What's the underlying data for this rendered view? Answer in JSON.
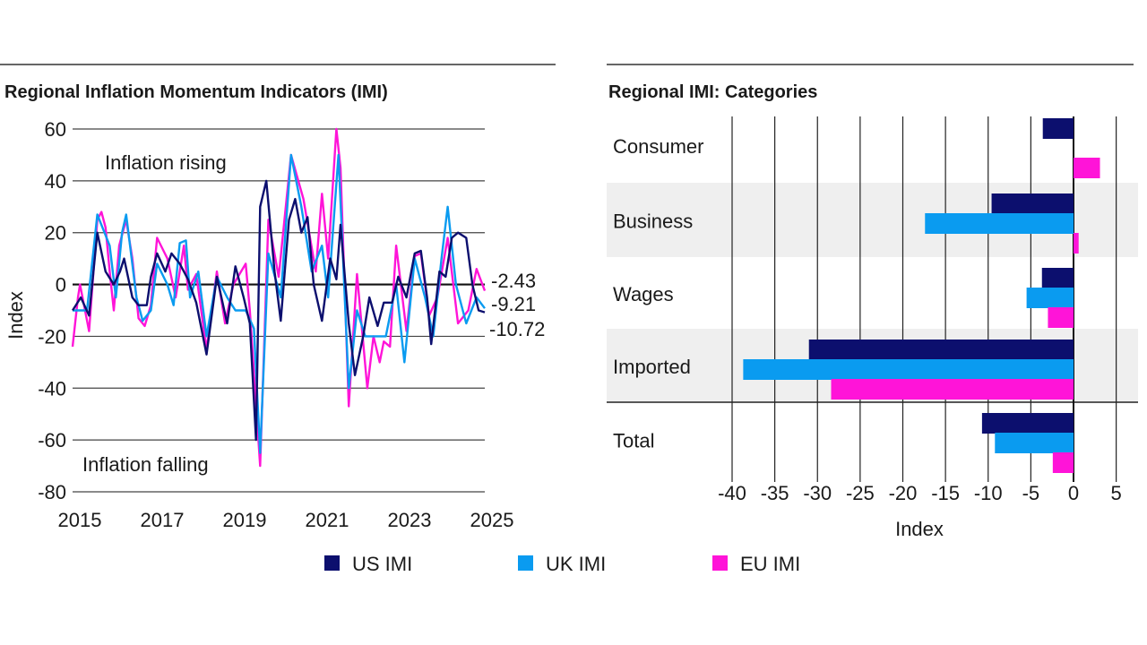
{
  "colors": {
    "US": "#0c0f6e",
    "UK": "#0a9bf0",
    "EU": "#ff14d8"
  },
  "legend": [
    {
      "key": "US",
      "label": "US IMI"
    },
    {
      "key": "UK",
      "label": "UK IMI"
    },
    {
      "key": "EU",
      "label": "EU IMI"
    }
  ],
  "chart_data": [
    {
      "type": "line",
      "title": "Regional Inflation Momentum Indicators (IMI)",
      "ylabel": "Index",
      "xlabel": "",
      "ylim": [
        -80,
        60
      ],
      "xlim": [
        2015,
        2025
      ],
      "yticks": [
        "60",
        "40",
        "20",
        "0",
        "-20",
        "-40",
        "-60",
        "-80"
      ],
      "xticks": [
        "2015",
        "2017",
        "2019",
        "2021",
        "2023",
        "2025"
      ],
      "grid": "horizontal",
      "annotations": {
        "rising": "Inflation rising",
        "falling": "Inflation falling"
      },
      "end_labels": {
        "EU": "-2.43",
        "UK": "-9.21",
        "US": "-10.72"
      },
      "series": [
        {
          "name": "US IMI",
          "key": "US",
          "x": [
            2015,
            2015.2,
            2015.4,
            2015.6,
            2015.8,
            2016.0,
            2016.15,
            2016.25,
            2016.45,
            2016.6,
            2016.8,
            2016.9,
            2017.05,
            2017.25,
            2017.4,
            2017.6,
            2017.8,
            2018.0,
            2018.25,
            2018.5,
            2018.75,
            2018.95,
            2019.15,
            2019.3,
            2019.45,
            2019.55,
            2019.7,
            2019.9,
            2020.05,
            2020.25,
            2020.4,
            2020.55,
            2020.7,
            2020.85,
            2021.05,
            2021.25,
            2021.4,
            2021.5,
            2021.7,
            2021.85,
            2022.05,
            2022.2,
            2022.4,
            2022.55,
            2022.75,
            2022.9,
            2023.1,
            2023.3,
            2023.45,
            2023.6,
            2023.7,
            2023.9,
            2024.05,
            2024.2,
            2024.35,
            2024.55,
            2024.7,
            2024.85,
            2025
          ],
          "y": [
            -10,
            -5,
            -12,
            20,
            5,
            0,
            5,
            10,
            -5,
            -8,
            -8,
            3,
            12,
            5,
            12,
            8,
            2,
            -7,
            -27,
            3,
            -15,
            7,
            -5,
            -15,
            -60,
            30,
            40,
            5,
            -14,
            25,
            33,
            20,
            26,
            0,
            -14,
            10,
            2,
            23,
            -15,
            -35,
            -20,
            -5,
            -16,
            -7,
            -7,
            3,
            -5,
            12,
            13,
            -5,
            -23,
            5,
            3,
            18,
            20,
            18,
            0,
            -10,
            -10.72
          ]
        },
        {
          "name": "UK IMI",
          "key": "UK",
          "x": [
            2015,
            2015.35,
            2015.6,
            2015.9,
            2016.05,
            2016.2,
            2016.3,
            2016.55,
            2016.7,
            2016.9,
            2017.05,
            2017.3,
            2017.45,
            2017.6,
            2017.75,
            2017.85,
            2018.05,
            2018.25,
            2018.5,
            2018.75,
            2018.95,
            2019.2,
            2019.4,
            2019.55,
            2019.75,
            2020.05,
            2020.3,
            2020.55,
            2020.8,
            2021.05,
            2021.2,
            2021.45,
            2021.7,
            2021.9,
            2022.1,
            2022.35,
            2022.6,
            2022.85,
            2023.05,
            2023.3,
            2023.55,
            2023.75,
            2023.95,
            2024.1,
            2024.3,
            2024.55,
            2024.8,
            2025
          ],
          "y": [
            -10,
            -10,
            27,
            15,
            -5,
            20,
            27,
            -5,
            -14,
            -10,
            8,
            0,
            -8,
            16,
            17,
            -5,
            5,
            -20,
            3,
            -5,
            -10,
            -10,
            -17,
            -65,
            12,
            -5,
            50,
            30,
            5,
            15,
            -5,
            50,
            -40,
            -10,
            -20,
            -20,
            -20,
            0,
            -30,
            10,
            -5,
            -20,
            10,
            30,
            0,
            -15,
            -5,
            -9.21
          ]
        },
        {
          "name": "EU IMI",
          "key": "EU",
          "x": [
            2015,
            2015.13,
            2015.18,
            2015.4,
            2015.6,
            2015.7,
            2015.8,
            2015.9,
            2016.0,
            2016.13,
            2016.3,
            2016.45,
            2016.6,
            2016.75,
            2016.9,
            2017.05,
            2017.3,
            2017.5,
            2017.7,
            2017.8,
            2018.0,
            2018.25,
            2018.5,
            2018.7,
            2018.9,
            2019.2,
            2019.3,
            2019.55,
            2019.75,
            2020.0,
            2020.3,
            2020.6,
            2020.9,
            2021.05,
            2021.2,
            2021.4,
            2021.5,
            2021.7,
            2021.9,
            2022.15,
            2022.3,
            2022.45,
            2022.55,
            2022.7,
            2022.85,
            2023.1,
            2023.3,
            2023.45,
            2023.65,
            2023.85,
            2024.1,
            2024.35,
            2024.6,
            2024.8,
            2025
          ],
          "y": [
            -24,
            -5,
            0,
            -18,
            25,
            28,
            22,
            5,
            -10,
            15,
            25,
            10,
            -13,
            -16,
            -8,
            18,
            10,
            -5,
            15,
            -2,
            4,
            -25,
            5,
            -15,
            0,
            8,
            -10,
            -70,
            25,
            3,
            50,
            33,
            5,
            35,
            10,
            60,
            45,
            -47,
            4,
            -40,
            -20,
            -30,
            -22,
            -24,
            15,
            -18,
            11,
            12,
            -12,
            -5,
            18,
            -15,
            -10,
            6,
            -2.43
          ]
        }
      ]
    },
    {
      "type": "bar",
      "orientation": "horizontal",
      "title": "Regional IMI: Categories",
      "xlabel": "Index",
      "xlim": [
        -40,
        5
      ],
      "xticks": [
        "-40",
        "-35",
        "-30",
        "-25",
        "-20",
        "-15",
        "-10",
        "-5",
        "0",
        "5"
      ],
      "categories": [
        "Consumer",
        "Business",
        "Wages",
        "Imported",
        "Total"
      ],
      "series": [
        {
          "name": "US IMI",
          "key": "US",
          "values": [
            -3.6,
            -9.6,
            -3.7,
            -31.0,
            -10.72
          ]
        },
        {
          "name": "UK IMI",
          "key": "UK",
          "values": [
            0,
            -17.4,
            -5.5,
            -38.7,
            -9.21
          ]
        },
        {
          "name": "EU IMI",
          "key": "EU",
          "values": [
            3.1,
            0.6,
            -3.0,
            -28.4,
            -2.43
          ]
        }
      ]
    }
  ]
}
